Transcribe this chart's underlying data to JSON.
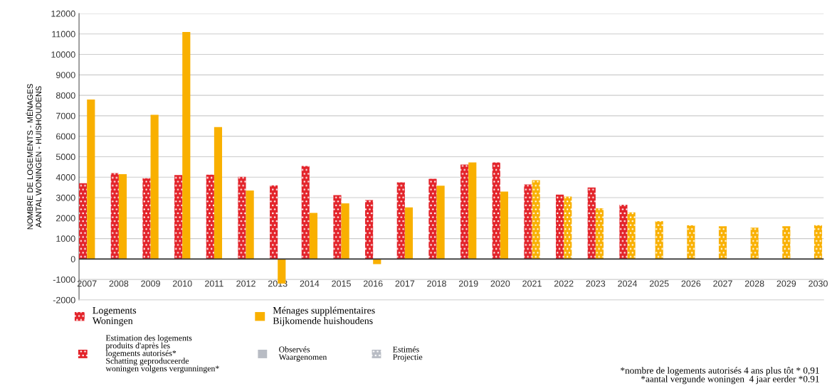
{
  "chart_data": {
    "type": "bar",
    "ylabel": "NOMBRE DE LOGEMENTS - MÉNAGES\nAANTAL WONINGEN - HUISHOUDENS",
    "categories": [
      "2007",
      "2008",
      "2009",
      "2010",
      "2011",
      "2012",
      "2013",
      "2014",
      "2015",
      "2016",
      "2017",
      "2018",
      "2019",
      "2020",
      "2021",
      "2022",
      "2023",
      "2024",
      "2025",
      "2026",
      "2027",
      "2028",
      "2029",
      "2030"
    ],
    "series": [
      {
        "name": "Logements\nWoningen",
        "color": "#e3232a",
        "line_style": "dotted",
        "values": [
          3700,
          4200,
          3950,
          4100,
          4120,
          4020,
          3600,
          4550,
          3120,
          2880,
          3750,
          3920,
          4620,
          4720,
          3640,
          3150,
          3500,
          2650,
          null,
          null,
          null,
          null,
          null,
          null
        ]
      },
      {
        "name": "Ménages supplémentaires\nBijkomende huishoudens",
        "color": "#f9b000",
        "line_style": "solid",
        "values": [
          7800,
          4150,
          7050,
          11100,
          6450,
          3350,
          -1200,
          2250,
          2720,
          -250,
          2520,
          3580,
          4720,
          3300,
          null,
          null,
          null,
          null,
          null,
          null,
          null,
          null,
          null,
          null
        ]
      },
      {
        "color": "#f9b000",
        "line_style": "dotted",
        "values": [
          null,
          null,
          null,
          null,
          null,
          null,
          null,
          null,
          null,
          null,
          null,
          null,
          null,
          null,
          3850,
          3050,
          2480,
          2280,
          1850,
          1650,
          1600,
          1530,
          1600,
          1650
        ]
      }
    ],
    "ylim": [
      -2000,
      12000
    ],
    "yticks": [
      -2000,
      -1000,
      0,
      1000,
      2000,
      3000,
      4000,
      5000,
      6000,
      7000,
      8000,
      9000,
      10000,
      11000,
      12000
    ],
    "grid": "y",
    "legend": "bottom left",
    "annotations": [
      "Estimation des logements\nproduits d'après les\nlogements autorisés*\nSchatting geproduceerde\nwoningen volgens vergunningen*",
      "Observés\nWaargenomen",
      "Estimés\nProjectie",
      "*nombre de logements autorisés 4 ans plus tôt * 0,91\n*aantal vergunde woningen  4 jaar eerder *0.91"
    ]
  }
}
